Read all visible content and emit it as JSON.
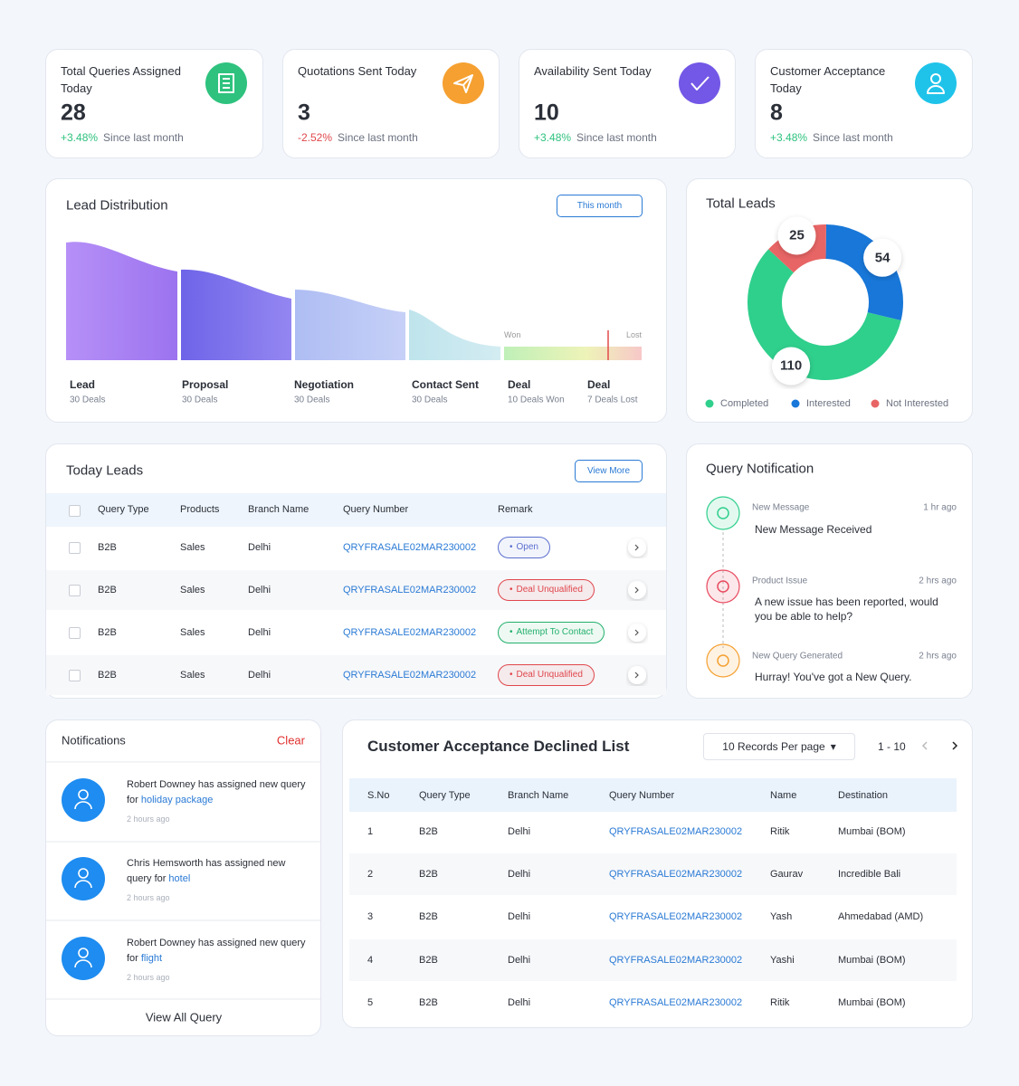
{
  "stats": [
    {
      "title": "Total Queries Assigned Today",
      "value": 28,
      "change": "+3.48%",
      "note": "Since last month",
      "color": "#2ec27e"
    },
    {
      "title": "Quotations Sent Today",
      "value": 3,
      "change": "-2.52%",
      "note": "Since last month",
      "color": "#f5a030"
    },
    {
      "title": "Availability Sent Today",
      "value": 10,
      "change": "+3.48%",
      "note": "Since last month",
      "color": "#7357e6"
    },
    {
      "title": "Customer Acceptance Today",
      "value": 8,
      "change": "+3.48%",
      "note": "Since last month",
      "color": "#1fc3ea"
    }
  ],
  "lead_distribution": {
    "title": "Lead Distribution",
    "filter": "This month",
    "won": "Won",
    "lost": "Lost",
    "stages": [
      {
        "name": "Lead",
        "deals": "30 Deals"
      },
      {
        "name": "Proposal",
        "deals": "30 Deals"
      },
      {
        "name": "Negotiation",
        "deals": "30 Deals"
      },
      {
        "name": "Contact Sent",
        "deals": "30 Deals"
      },
      {
        "name": "Deal",
        "deals": "10 Deals Won"
      },
      {
        "name": "Deal",
        "deals": "7 Deals Lost"
      }
    ]
  },
  "total_leads": {
    "title": "Total Leads",
    "segments": [
      {
        "name": "Completed",
        "value": 110,
        "color": "#2fcf8c"
      },
      {
        "name": "Interested",
        "value": 54,
        "color": "#1877d8"
      },
      {
        "name": "Not Interested",
        "value": 25,
        "color": "#e86565"
      }
    ]
  },
  "today_leads": {
    "title": "Today Leads",
    "action": "View More",
    "columns": [
      "Query Type",
      "Products",
      "Branch Name",
      "Query Number",
      "Remark"
    ],
    "rows": [
      {
        "cells": [
          "B2B",
          "Sales",
          "Delhi",
          "QRYFRASALE02MAR230002"
        ],
        "remark": "Open",
        "color": "#5b6fd0"
      },
      {
        "cells": [
          "B2B",
          "Sales",
          "Delhi",
          "QRYFRASALE02MAR230002"
        ],
        "remark": "Deal Unqualified",
        "color": "#e0474c"
      },
      {
        "cells": [
          "B2B",
          "Sales",
          "Delhi",
          "QRYFRASALE02MAR230002"
        ],
        "remark": "Attempt To Contact",
        "color": "#22b06c"
      },
      {
        "cells": [
          "B2B",
          "Sales",
          "Delhi",
          "QRYFRASALE02MAR230002"
        ],
        "remark": "Deal Unqualified",
        "color": "#e0474c"
      }
    ]
  },
  "query_notification": {
    "title": "Query Notification",
    "items": [
      {
        "type": "New Message",
        "time": "1 hr ago",
        "message": "New Message Received",
        "color": "#2fcf8c"
      },
      {
        "type": "Product Issue",
        "time": "2 hrs ago",
        "message": "A new issue has been reported, would you be able to help?",
        "color": "#e84a5f"
      },
      {
        "type": "New Query Generated",
        "time": "2 hrs ago",
        "message": "Hurray! You've got a New Query.",
        "color": "#f5a030"
      }
    ]
  },
  "notifications": {
    "title": "Notifications",
    "clear": "Clear",
    "footer": "View All Query",
    "items": [
      {
        "text": "Robert Downey has assigned new query for",
        "link": "holiday package",
        "time": "2 hours ago"
      },
      {
        "text": "Chris Hemsworth has assigned new query for",
        "link": "hotel",
        "time": "2 hours ago"
      },
      {
        "text": "Robert Downey has assigned new query for",
        "link": "flight",
        "time": "2 hours ago"
      }
    ]
  },
  "declined": {
    "title": "Customer Acceptance Declined List",
    "per_page": "10 Records Per page",
    "range": "1 - 10",
    "columns": [
      "S.No",
      "Query Type",
      "Branch Name",
      "Query Number",
      "Name",
      "Destination"
    ],
    "rows": [
      [
        1,
        "B2B",
        "Delhi",
        "QRYFRASALE02MAR230002",
        "Ritik",
        "Mumbai (BOM)"
      ],
      [
        2,
        "B2B",
        "Delhi",
        "QRYFRASALE02MAR230002",
        "Gaurav",
        "Incredible Bali"
      ],
      [
        3,
        "B2B",
        "Delhi",
        "QRYFRASALE02MAR230002",
        "Yash",
        "Ahmedabad (AMD)"
      ],
      [
        4,
        "B2B",
        "Delhi",
        "QRYFRASALE02MAR230002",
        "Yashi",
        "Mumbai (BOM)"
      ],
      [
        5,
        "B2B",
        "Delhi",
        "QRYFRASALE02MAR230002",
        "Ritik",
        "Mumbai (BOM)"
      ]
    ]
  }
}
